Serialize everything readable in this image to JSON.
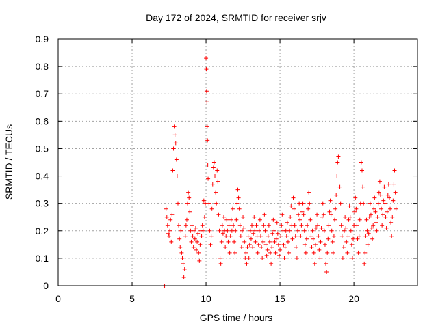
{
  "chart_data": {
    "type": "scatter",
    "title": "Day 172 of 2024, SRMTID for receiver srjv",
    "xlabel": "GPS time / hours",
    "ylabel": "SRMTID / TECUs",
    "xlim": [
      0,
      24.3
    ],
    "ylim": [
      0,
      0.9
    ],
    "xticks": [
      0,
      5,
      10,
      15,
      20
    ],
    "yticks": [
      0,
      0.1,
      0.2,
      0.3,
      0.4,
      0.5,
      0.6,
      0.7,
      0.8,
      0.9
    ],
    "xtick_labels": [
      "0",
      "5",
      "10",
      "15",
      "20"
    ],
    "ytick_labels": [
      "0",
      "0.1",
      "0.2",
      "0.3",
      "0.4",
      "0.5",
      "0.6",
      "0.7",
      "0.8",
      "0.9"
    ],
    "grid": true,
    "marker": "+",
    "color": "#ff0000",
    "series": [
      {
        "name": "srjv",
        "points": [
          [
            7.15,
            0.0
          ],
          [
            7.2,
            0.0
          ],
          [
            7.3,
            0.28
          ],
          [
            7.35,
            0.25
          ],
          [
            7.4,
            0.22
          ],
          [
            7.45,
            0.19
          ],
          [
            7.5,
            0.18
          ],
          [
            7.55,
            0.2
          ],
          [
            7.6,
            0.24
          ],
          [
            7.65,
            0.16
          ],
          [
            7.7,
            0.26
          ],
          [
            7.75,
            0.42
          ],
          [
            7.8,
            0.5
          ],
          [
            7.85,
            0.58
          ],
          [
            7.9,
            0.55
          ],
          [
            7.95,
            0.52
          ],
          [
            8.0,
            0.46
          ],
          [
            8.05,
            0.4
          ],
          [
            8.1,
            0.3
          ],
          [
            8.15,
            0.22
          ],
          [
            8.2,
            0.17
          ],
          [
            8.25,
            0.14
          ],
          [
            8.3,
            0.2
          ],
          [
            8.35,
            0.12
          ],
          [
            8.4,
            0.1
          ],
          [
            8.45,
            0.08
          ],
          [
            8.5,
            0.03
          ],
          [
            8.55,
            0.06
          ],
          [
            8.6,
            0.18
          ],
          [
            8.65,
            0.22
          ],
          [
            8.7,
            0.24
          ],
          [
            8.75,
            0.3
          ],
          [
            8.8,
            0.34
          ],
          [
            8.85,
            0.32
          ],
          [
            8.9,
            0.27
          ],
          [
            8.95,
            0.2
          ],
          [
            9.0,
            0.16
          ],
          [
            9.05,
            0.22
          ],
          [
            9.1,
            0.18
          ],
          [
            9.15,
            0.14
          ],
          [
            9.2,
            0.2
          ],
          [
            9.25,
            0.17
          ],
          [
            9.3,
            0.21
          ],
          [
            9.35,
            0.13
          ],
          [
            9.4,
            0.16
          ],
          [
            9.45,
            0.19
          ],
          [
            9.5,
            0.12
          ],
          [
            9.55,
            0.09
          ],
          [
            9.6,
            0.15
          ],
          [
            9.65,
            0.2
          ],
          [
            9.7,
            0.18
          ],
          [
            9.75,
            0.22
          ],
          [
            9.8,
            0.2
          ],
          [
            9.85,
            0.31
          ],
          [
            9.9,
            0.25
          ],
          [
            9.95,
            0.3
          ],
          [
            10.0,
            0.83
          ],
          [
            10.02,
            0.79
          ],
          [
            10.04,
            0.71
          ],
          [
            10.06,
            0.67
          ],
          [
            10.08,
            0.58
          ],
          [
            10.1,
            0.53
          ],
          [
            10.12,
            0.44
          ],
          [
            10.14,
            0.39
          ],
          [
            10.2,
            0.3
          ],
          [
            10.25,
            0.2
          ],
          [
            10.3,
            0.15
          ],
          [
            10.35,
            0.18
          ],
          [
            10.4,
            0.28
          ],
          [
            10.45,
            0.37
          ],
          [
            10.5,
            0.43
          ],
          [
            10.55,
            0.45
          ],
          [
            10.6,
            0.4
          ],
          [
            10.65,
            0.34
          ],
          [
            10.7,
            0.3
          ],
          [
            10.75,
            0.42
          ],
          [
            10.8,
            0.38
          ],
          [
            10.85,
            0.26
          ],
          [
            10.9,
            0.2
          ],
          [
            10.95,
            0.1
          ],
          [
            11.0,
            0.08
          ],
          [
            11.05,
            0.16
          ],
          [
            11.1,
            0.22
          ],
          [
            11.15,
            0.19
          ],
          [
            11.2,
            0.25
          ],
          [
            11.25,
            0.2
          ],
          [
            11.3,
            0.14
          ],
          [
            11.35,
            0.18
          ],
          [
            11.4,
            0.24
          ],
          [
            11.45,
            0.2
          ],
          [
            11.5,
            0.16
          ],
          [
            11.55,
            0.22
          ],
          [
            11.6,
            0.12
          ],
          [
            11.65,
            0.18
          ],
          [
            11.7,
            0.24
          ],
          [
            11.75,
            0.2
          ],
          [
            11.8,
            0.28
          ],
          [
            11.85,
            0.22
          ],
          [
            11.9,
            0.16
          ],
          [
            11.95,
            0.12
          ],
          [
            12.0,
            0.2
          ],
          [
            12.05,
            0.24
          ],
          [
            12.1,
            0.3
          ],
          [
            12.15,
            0.35
          ],
          [
            12.2,
            0.32
          ],
          [
            12.25,
            0.28
          ],
          [
            12.3,
            0.22
          ],
          [
            12.35,
            0.18
          ],
          [
            12.4,
            0.14
          ],
          [
            12.45,
            0.2
          ],
          [
            12.5,
            0.25
          ],
          [
            12.55,
            0.21
          ],
          [
            12.6,
            0.16
          ],
          [
            12.65,
            0.1
          ],
          [
            12.7,
            0.12
          ],
          [
            12.75,
            0.08
          ],
          [
            12.8,
            0.14
          ],
          [
            12.85,
            0.18
          ],
          [
            12.9,
            0.1
          ],
          [
            12.95,
            0.15
          ],
          [
            13.0,
            0.2
          ],
          [
            13.05,
            0.17
          ],
          [
            13.1,
            0.22
          ],
          [
            13.15,
            0.14
          ],
          [
            13.2,
            0.19
          ],
          [
            13.25,
            0.25
          ],
          [
            13.3,
            0.2
          ],
          [
            13.35,
            0.16
          ],
          [
            13.4,
            0.22
          ],
          [
            13.45,
            0.18
          ],
          [
            13.5,
            0.12
          ],
          [
            13.55,
            0.15
          ],
          [
            13.6,
            0.2
          ],
          [
            13.65,
            0.24
          ],
          [
            13.7,
            0.18
          ],
          [
            13.75,
            0.14
          ],
          [
            13.8,
            0.1
          ],
          [
            13.85,
            0.16
          ],
          [
            13.9,
            0.22
          ],
          [
            13.95,
            0.26
          ],
          [
            14.0,
            0.2
          ],
          [
            14.05,
            0.15
          ],
          [
            14.1,
            0.11
          ],
          [
            14.15,
            0.13
          ],
          [
            14.2,
            0.18
          ],
          [
            14.25,
            0.22
          ],
          [
            14.3,
            0.16
          ],
          [
            14.35,
            0.12
          ],
          [
            14.4,
            0.08
          ],
          [
            14.45,
            0.14
          ],
          [
            14.5,
            0.19
          ],
          [
            14.55,
            0.24
          ],
          [
            14.6,
            0.2
          ],
          [
            14.65,
            0.16
          ],
          [
            14.7,
            0.12
          ],
          [
            14.75,
            0.17
          ],
          [
            14.8,
            0.23
          ],
          [
            14.85,
            0.19
          ],
          [
            14.9,
            0.15
          ],
          [
            14.95,
            0.11
          ],
          [
            15.0,
            0.13
          ],
          [
            15.05,
            0.18
          ],
          [
            15.1,
            0.22
          ],
          [
            15.15,
            0.26
          ],
          [
            15.2,
            0.2
          ],
          [
            15.25,
            0.15
          ],
          [
            15.3,
            0.1
          ],
          [
            15.35,
            0.14
          ],
          [
            15.4,
            0.2
          ],
          [
            15.45,
            0.18
          ],
          [
            15.5,
            0.23
          ],
          [
            15.55,
            0.16
          ],
          [
            15.6,
            0.12
          ],
          [
            15.65,
            0.2
          ],
          [
            15.7,
            0.25
          ],
          [
            15.75,
            0.29
          ],
          [
            15.8,
            0.22
          ],
          [
            15.85,
            0.17
          ],
          [
            15.9,
            0.32
          ],
          [
            15.95,
            0.28
          ],
          [
            16.0,
            0.22
          ],
          [
            16.05,
            0.18
          ],
          [
            16.1,
            0.14
          ],
          [
            16.15,
            0.1
          ],
          [
            16.2,
            0.2
          ],
          [
            16.25,
            0.26
          ],
          [
            16.3,
            0.3
          ],
          [
            16.35,
            0.24
          ],
          [
            16.4,
            0.18
          ],
          [
            16.45,
            0.22
          ],
          [
            16.5,
            0.27
          ],
          [
            16.55,
            0.3
          ],
          [
            16.6,
            0.26
          ],
          [
            16.65,
            0.2
          ],
          [
            16.7,
            0.15
          ],
          [
            16.75,
            0.12
          ],
          [
            16.8,
            0.17
          ],
          [
            16.85,
            0.22
          ],
          [
            16.9,
            0.28
          ],
          [
            16.95,
            0.34
          ],
          [
            17.0,
            0.3
          ],
          [
            17.05,
            0.24
          ],
          [
            17.1,
            0.18
          ],
          [
            17.15,
            0.14
          ],
          [
            17.2,
            0.2
          ],
          [
            17.25,
            0.17
          ],
          [
            17.3,
            0.12
          ],
          [
            17.35,
            0.08
          ],
          [
            17.4,
            0.15
          ],
          [
            17.45,
            0.21
          ],
          [
            17.5,
            0.26
          ],
          [
            17.55,
            0.22
          ],
          [
            17.6,
            0.18
          ],
          [
            17.65,
            0.13
          ],
          [
            17.7,
            0.1
          ],
          [
            17.75,
            0.16
          ],
          [
            17.8,
            0.21
          ],
          [
            17.85,
            0.25
          ],
          [
            17.9,
            0.3
          ],
          [
            17.95,
            0.26
          ],
          [
            18.0,
            0.2
          ],
          [
            18.05,
            0.15
          ],
          [
            18.1,
            0.08
          ],
          [
            18.15,
            0.05
          ],
          [
            18.2,
            0.12
          ],
          [
            18.25,
            0.17
          ],
          [
            18.3,
            0.22
          ],
          [
            18.35,
            0.27
          ],
          [
            18.4,
            0.31
          ],
          [
            18.45,
            0.26
          ],
          [
            18.5,
            0.2
          ],
          [
            18.55,
            0.16
          ],
          [
            18.6,
            0.12
          ],
          [
            18.65,
            0.18
          ],
          [
            18.7,
            0.24
          ],
          [
            18.75,
            0.28
          ],
          [
            18.8,
            0.33
          ],
          [
            18.85,
            0.4
          ],
          [
            18.9,
            0.45
          ],
          [
            18.95,
            0.47
          ],
          [
            19.0,
            0.44
          ],
          [
            19.05,
            0.36
          ],
          [
            19.1,
            0.3
          ],
          [
            19.15,
            0.22
          ],
          [
            19.2,
            0.18
          ],
          [
            19.25,
            0.1
          ],
          [
            19.3,
            0.14
          ],
          [
            19.35,
            0.2
          ],
          [
            19.4,
            0.25
          ],
          [
            19.45,
            0.21
          ],
          [
            19.5,
            0.16
          ],
          [
            19.55,
            0.12
          ],
          [
            19.6,
            0.18
          ],
          [
            19.65,
            0.24
          ],
          [
            19.7,
            0.29
          ],
          [
            19.75,
            0.25
          ],
          [
            19.8,
            0.2
          ],
          [
            19.85,
            0.15
          ],
          [
            19.9,
            0.1
          ],
          [
            19.95,
            0.17
          ],
          [
            20.0,
            0.22
          ],
          [
            20.05,
            0.27
          ],
          [
            20.1,
            0.32
          ],
          [
            20.15,
            0.28
          ],
          [
            20.2,
            0.22
          ],
          [
            20.25,
            0.17
          ],
          [
            20.3,
            0.12
          ],
          [
            20.35,
            0.18
          ],
          [
            20.4,
            0.24
          ],
          [
            20.45,
            0.3
          ],
          [
            20.5,
            0.45
          ],
          [
            20.55,
            0.42
          ],
          [
            20.6,
            0.36
          ],
          [
            20.65,
            0.3
          ],
          [
            20.7,
            0.08
          ],
          [
            20.75,
            0.12
          ],
          [
            20.8,
            0.18
          ],
          [
            20.85,
            0.24
          ],
          [
            20.9,
            0.2
          ],
          [
            20.95,
            0.15
          ],
          [
            21.0,
            0.19
          ],
          [
            21.05,
            0.25
          ],
          [
            21.1,
            0.3
          ],
          [
            21.15,
            0.26
          ],
          [
            21.2,
            0.21
          ],
          [
            21.25,
            0.17
          ],
          [
            21.3,
            0.22
          ],
          [
            21.35,
            0.28
          ],
          [
            21.4,
            0.32
          ],
          [
            21.45,
            0.27
          ],
          [
            21.5,
            0.23
          ],
          [
            21.55,
            0.2
          ],
          [
            21.6,
            0.25
          ],
          [
            21.65,
            0.3
          ],
          [
            21.7,
            0.34
          ],
          [
            21.75,
            0.38
          ],
          [
            21.8,
            0.33
          ],
          [
            21.85,
            0.28
          ],
          [
            21.9,
            0.22
          ],
          [
            21.95,
            0.26
          ],
          [
            22.0,
            0.31
          ],
          [
            22.05,
            0.36
          ],
          [
            22.1,
            0.3
          ],
          [
            22.15,
            0.25
          ],
          [
            22.2,
            0.21
          ],
          [
            22.25,
            0.27
          ],
          [
            22.3,
            0.33
          ],
          [
            22.35,
            0.37
          ],
          [
            22.4,
            0.32
          ],
          [
            22.45,
            0.28
          ],
          [
            22.5,
            0.23
          ],
          [
            22.55,
            0.18
          ],
          [
            22.6,
            0.25
          ],
          [
            22.65,
            0.31
          ],
          [
            22.7,
            0.37
          ],
          [
            22.75,
            0.42
          ],
          [
            22.8,
            0.34
          ],
          [
            22.85,
            0.28
          ]
        ]
      }
    ]
  }
}
